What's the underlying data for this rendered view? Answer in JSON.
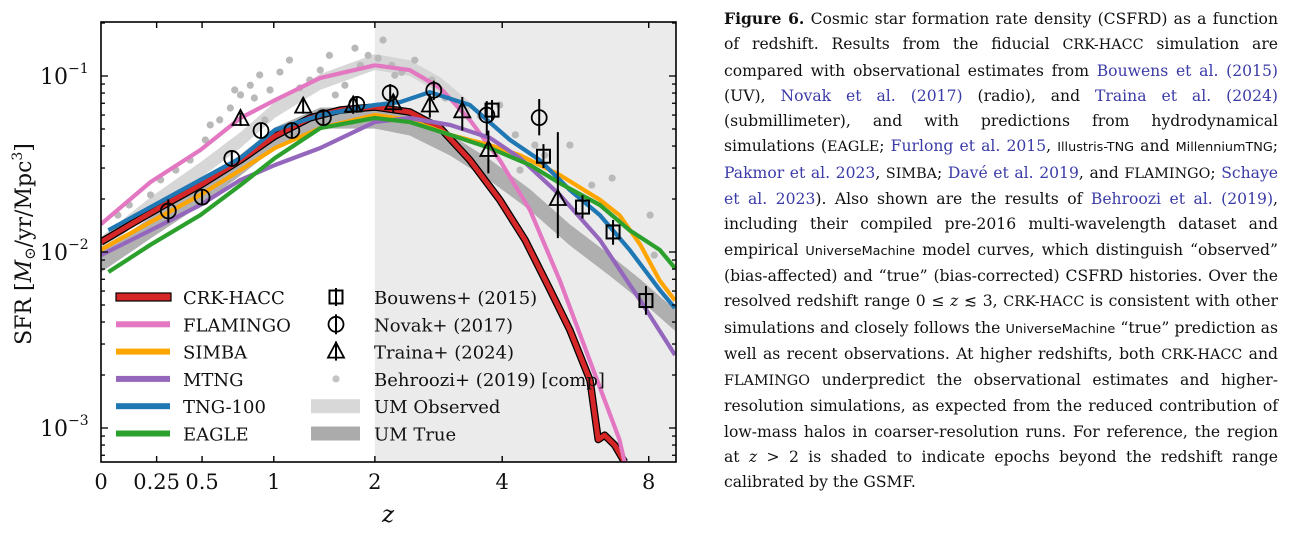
{
  "chart_data": {
    "type": "line",
    "title": "",
    "xlabel": "z",
    "ylabel": "SFR [M⊙/yr/Mpc³]",
    "xscale": "log(1+z)",
    "yscale": "log",
    "xlim": [
      0,
      9.0
    ],
    "ylim": [
      0.00058,
      0.22
    ],
    "xticks": [
      0,
      0.25,
      0.5,
      1,
      2,
      4,
      8
    ],
    "xtick_labels": [
      "0",
      "0.25",
      "0.5",
      "1",
      "2",
      "4",
      "8"
    ],
    "yticks": [
      0.001,
      0.01,
      0.1
    ],
    "ytick_labels": [
      "10",
      "10",
      "10"
    ],
    "ytick_exponents": [
      "−3",
      "−2",
      "−1"
    ],
    "shaded_region": {
      "x_from": 2,
      "x_to": 9.0,
      "color": "#ebebeb",
      "meaning": "z > 2 beyond GSMF-calibrated range"
    },
    "grid": false,
    "legend_placement": "lower-left",
    "series": [
      {
        "name": "CRK-HACC",
        "kind": "line",
        "color": "#d62728",
        "outline": "#000000",
        "x": [
          0,
          0.12,
          0.27,
          0.5,
          0.75,
          1.01,
          1.31,
          1.61,
          2.0,
          2.45,
          2.9,
          3.39,
          3.95,
          4.48,
          5.06,
          5.56,
          6.11,
          6.35,
          6.54,
          6.85,
          7.17
        ],
        "y": [
          0.0114,
          0.0142,
          0.018,
          0.0243,
          0.0333,
          0.0456,
          0.0577,
          0.0641,
          0.0667,
          0.0624,
          0.0506,
          0.0333,
          0.0198,
          0.0117,
          0.0061,
          0.0036,
          0.00187,
          0.00086,
          0.00091,
          0.0008,
          0.00064
        ]
      },
      {
        "name": "FLAMINGO",
        "kind": "line",
        "color": "#e377c2",
        "x": [
          0,
          0.22,
          0.49,
          0.75,
          1.01,
          1.41,
          2.0,
          2.45,
          2.9,
          3.39,
          3.95,
          4.59,
          5.3,
          6.11,
          7.0,
          7.17
        ],
        "y": [
          0.0144,
          0.025,
          0.038,
          0.0577,
          0.073,
          0.0976,
          0.115,
          0.108,
          0.0855,
          0.0563,
          0.0333,
          0.0173,
          0.0069,
          0.0024,
          0.00086,
          0.00064
        ]
      },
      {
        "name": "SIMBA",
        "kind": "line",
        "color": "#ffa500",
        "x": [
          0,
          0.22,
          0.49,
          0.75,
          1.01,
          1.41,
          2.0,
          2.45,
          3.06,
          3.76,
          4.37,
          5.3,
          6.4,
          7.0,
          7.7,
          8.4,
          9.0
        ],
        "y": [
          0.0103,
          0.0148,
          0.0211,
          0.0292,
          0.039,
          0.0506,
          0.06,
          0.0563,
          0.0463,
          0.0405,
          0.0355,
          0.0274,
          0.0198,
          0.0162,
          0.011,
          0.0069,
          0.0053
        ]
      },
      {
        "name": "MTNG",
        "kind": "line",
        "color": "#9467bd",
        "x": [
          0,
          0.22,
          0.49,
          0.75,
          1.01,
          1.41,
          2.0,
          2.45,
          3.06,
          3.76,
          4.37,
          5.3,
          6.4,
          7.7,
          9.0
        ],
        "y": [
          0.0096,
          0.0133,
          0.0185,
          0.0257,
          0.0312,
          0.039,
          0.0548,
          0.0577,
          0.0527,
          0.0445,
          0.0342,
          0.0211,
          0.0117,
          0.0053,
          0.0026
        ]
      },
      {
        "name": "TNG-100",
        "kind": "line",
        "color": "#1f77b4",
        "x": [
          0.03,
          0.22,
          0.49,
          0.75,
          1.01,
          1.41,
          2.0,
          2.32,
          2.74,
          3.39,
          4.16,
          4.81,
          5.56,
          6.4,
          7.33,
          8.4,
          9.0
        ],
        "y": [
          0.0133,
          0.018,
          0.0257,
          0.0342,
          0.0494,
          0.06,
          0.0684,
          0.0711,
          0.081,
          0.0684,
          0.0433,
          0.0333,
          0.0225,
          0.0162,
          0.0103,
          0.0061,
          0.0048
        ]
      },
      {
        "name": "EAGLE",
        "kind": "line",
        "color": "#2ca02c",
        "x": [
          0.03,
          0.22,
          0.49,
          0.75,
          1.01,
          1.41,
          2.0,
          2.45,
          3.06,
          3.76,
          4.59,
          5.3,
          6.4,
          7.33,
          8.4,
          9.0
        ],
        "y": [
          0.0077,
          0.011,
          0.0162,
          0.024,
          0.0342,
          0.0506,
          0.0577,
          0.0548,
          0.0463,
          0.039,
          0.0312,
          0.0246,
          0.0185,
          0.0133,
          0.0103,
          0.0081
        ]
      },
      {
        "name": "UM Observed",
        "kind": "band",
        "color": "#d3d3d3",
        "log_halfwidth": 0.045,
        "x": [
          0,
          0.22,
          0.49,
          0.75,
          1.01,
          1.41,
          2.0,
          2.45,
          2.9,
          3.39
        ],
        "y": [
          0.011,
          0.0185,
          0.0292,
          0.0433,
          0.0642,
          0.0925,
          0.12,
          0.111,
          0.0886,
          0.0642
        ]
      },
      {
        "name": "UM True",
        "kind": "band",
        "color": "#a9a9a9",
        "log_halfwidth": 0.06,
        "x": [
          0,
          0.22,
          0.49,
          0.75,
          1.01,
          1.41,
          2.0,
          2.45,
          3.06,
          3.76,
          4.59,
          5.56,
          6.7,
          7.7,
          9.0
        ],
        "y": [
          0.0088,
          0.0137,
          0.0211,
          0.0312,
          0.0445,
          0.0577,
          0.0577,
          0.0527,
          0.0405,
          0.0292,
          0.0198,
          0.0125,
          0.0084,
          0.0061,
          0.0041
        ]
      }
    ],
    "observations": [
      {
        "name": "Bouwens+ (2015)",
        "marker": "square",
        "points": [
          {
            "x": 3.8,
            "y": 0.064,
            "err": [
              0.056,
              0.073
            ]
          },
          {
            "x": 4.9,
            "y": 0.035,
            "err": [
              0.03,
              0.041
            ]
          },
          {
            "x": 5.9,
            "y": 0.018,
            "err": [
              0.0155,
              0.021
            ]
          },
          {
            "x": 6.8,
            "y": 0.013,
            "err": [
              0.011,
              0.0152
            ]
          },
          {
            "x": 7.9,
            "y": 0.0053,
            "err": [
              0.0044,
              0.0064
            ]
          }
        ]
      },
      {
        "name": "Novak+ (2017)",
        "marker": "circle",
        "points": [
          {
            "x": 0.31,
            "y": 0.0171,
            "err": [
              0.0147,
              0.0199
            ]
          },
          {
            "x": 0.5,
            "y": 0.0205,
            "err": [
              0.0185,
              0.0227
            ]
          },
          {
            "x": 0.69,
            "y": 0.034,
            "err": [
              0.031,
              0.0373
            ]
          },
          {
            "x": 0.9,
            "y": 0.049,
            "err": [
              0.0445,
              0.054
            ]
          },
          {
            "x": 1.15,
            "y": 0.049,
            "err": [
              0.0445,
              0.054
            ]
          },
          {
            "x": 1.44,
            "y": 0.058,
            "err": [
              0.0525,
              0.064
            ]
          },
          {
            "x": 1.79,
            "y": 0.069,
            "err": [
              0.062,
              0.076
            ]
          },
          {
            "x": 2.19,
            "y": 0.08,
            "err": [
              0.071,
              0.09
            ]
          },
          {
            "x": 2.8,
            "y": 0.083,
            "err": [
              0.073,
              0.094
            ]
          },
          {
            "x": 3.7,
            "y": 0.06,
            "err": [
              0.046,
              0.072
            ]
          },
          {
            "x": 4.8,
            "y": 0.058,
            "err": [
              0.046,
              0.074
            ]
          }
        ]
      },
      {
        "name": "Traina+ (2024)",
        "marker": "triangle",
        "points": [
          {
            "x": 0.75,
            "y": 0.057,
            "err": [
              0.052,
              0.062
            ]
          },
          {
            "x": 1.25,
            "y": 0.067,
            "err": [
              0.061,
              0.074
            ]
          },
          {
            "x": 1.75,
            "y": 0.068,
            "err": [
              0.061,
              0.075
            ]
          },
          {
            "x": 2.23,
            "y": 0.07,
            "err": [
              0.062,
              0.078
            ]
          },
          {
            "x": 2.74,
            "y": 0.068,
            "err": [
              0.058,
              0.079
            ]
          },
          {
            "x": 3.26,
            "y": 0.063,
            "err": [
              0.049,
              0.076
            ]
          },
          {
            "x": 3.73,
            "y": 0.038,
            "err": [
              0.028,
              0.049
            ]
          },
          {
            "x": 5.25,
            "y": 0.02,
            "err": [
              0.012,
              0.048
            ]
          }
        ]
      },
      {
        "name": "Behroozi+ (2019) [comp]",
        "marker": "dot",
        "color": "#b9b9b9",
        "points": [
          {
            "x": 0.07,
            "y": 0.0162
          },
          {
            "x": 0.12,
            "y": 0.0185
          },
          {
            "x": 0.22,
            "y": 0.0211
          },
          {
            "x": 0.27,
            "y": 0.0257
          },
          {
            "x": 0.35,
            "y": 0.0292
          },
          {
            "x": 0.43,
            "y": 0.0333
          },
          {
            "x": 0.52,
            "y": 0.0433
          },
          {
            "x": 0.55,
            "y": 0.0527
          },
          {
            "x": 0.61,
            "y": 0.0563
          },
          {
            "x": 0.68,
            "y": 0.0658
          },
          {
            "x": 0.71,
            "y": 0.0833
          },
          {
            "x": 0.75,
            "y": 0.0781
          },
          {
            "x": 0.82,
            "y": 0.0886
          },
          {
            "x": 0.85,
            "y": 0.075
          },
          {
            "x": 0.89,
            "y": 0.1014
          },
          {
            "x": 0.93,
            "y": 0.0563
          },
          {
            "x": 0.97,
            "y": 0.0833
          },
          {
            "x": 1.05,
            "y": 0.1053
          },
          {
            "x": 1.13,
            "y": 0.1231
          },
          {
            "x": 1.22,
            "y": 0.0855
          },
          {
            "x": 1.31,
            "y": 0.0948
          },
          {
            "x": 1.41,
            "y": 0.108
          },
          {
            "x": 1.5,
            "y": 0.131
          },
          {
            "x": 1.56,
            "y": 0.078
          },
          {
            "x": 1.66,
            "y": 0.0886
          },
          {
            "x": 1.77,
            "y": 0.144
          },
          {
            "x": 1.83,
            "y": 0.115
          },
          {
            "x": 1.92,
            "y": 0.131
          },
          {
            "x": 2.04,
            "y": 0.126
          },
          {
            "x": 2.1,
            "y": 0.16
          },
          {
            "x": 2.21,
            "y": 0.115
          },
          {
            "x": 2.25,
            "y": 0.101
          },
          {
            "x": 2.34,
            "y": 0.105
          },
          {
            "x": 2.52,
            "y": 0.123
          },
          {
            "x": 2.77,
            "y": 0.095
          },
          {
            "x": 2.98,
            "y": 0.075
          },
          {
            "x": 3.19,
            "y": 0.0684
          },
          {
            "x": 3.58,
            "y": 0.0591
          },
          {
            "x": 3.95,
            "y": 0.0684
          },
          {
            "x": 4.27,
            "y": 0.0463
          },
          {
            "x": 4.37,
            "y": 0.0292
          },
          {
            "x": 4.7,
            "y": 0.0405
          },
          {
            "x": 4.93,
            "y": 0.0355
          },
          {
            "x": 5.56,
            "y": 0.0405
          },
          {
            "x": 6.16,
            "y": 0.024
          },
          {
            "x": 6.77,
            "y": 0.0263
          },
          {
            "x": 8.05,
            "y": 0.0162
          },
          {
            "x": 8.2,
            "y": 0.0096
          },
          {
            "x": 7.98,
            "y": 0.005
          }
        ]
      }
    ],
    "legend_left": [
      "CRK-HACC",
      "FLAMINGO",
      "SIMBA",
      "MTNG",
      "TNG-100",
      "EAGLE"
    ],
    "legend_right": [
      "Bouwens+ (2015)",
      "Novak+ (2017)",
      "Traina+ (2024)",
      "Behroozi+ (2019) [comp]",
      "UM Observed",
      "UM True"
    ]
  },
  "caption": {
    "label": "Figure 6.",
    "segments": [
      {
        "t": " Cosmic star formation rate density (CSFRD) as a function of redshift. Results from the fiducial "
      },
      {
        "t": "CRK-HACC",
        "style": "sc"
      },
      {
        "t": " simulation are compared with observational estimates from "
      },
      {
        "t": "Bouwens et al. (2015)",
        "style": "cite"
      },
      {
        "t": " (UV), "
      },
      {
        "t": "Novak et al. (2017)",
        "style": "cite"
      },
      {
        "t": " (radio), and "
      },
      {
        "t": "Traina et al. (2024)",
        "style": "cite"
      },
      {
        "t": " (submillimeter), and with predictions from hydrodynamical simulations ("
      },
      {
        "t": "EAGLE",
        "style": "sc"
      },
      {
        "t": "; "
      },
      {
        "t": "Furlong et al. 2015",
        "style": "cite"
      },
      {
        "t": ", "
      },
      {
        "t": "Illustris-TNG",
        "style": "sf"
      },
      {
        "t": " and "
      },
      {
        "t": "MillenniumTNG",
        "style": "sf"
      },
      {
        "t": "; "
      },
      {
        "t": "Pakmor et al. 2023",
        "style": "cite"
      },
      {
        "t": ", "
      },
      {
        "t": "SIMBA",
        "style": "sc"
      },
      {
        "t": "; "
      },
      {
        "t": "Davé et al. 2019",
        "style": "cite"
      },
      {
        "t": ", and "
      },
      {
        "t": "FLAMINGO",
        "style": "sc"
      },
      {
        "t": "; "
      },
      {
        "t": "Schaye et al. 2023",
        "style": "cite"
      },
      {
        "t": "). Also shown are the results of "
      },
      {
        "t": "Behroozi et al. (2019)",
        "style": "cite"
      },
      {
        "t": ", includ­ing their compiled pre-2016 multi-wavelength dataset and empirical "
      },
      {
        "t": "UniverseMachine",
        "style": "sf"
      },
      {
        "t": " model curves, which distinguish “observed” (bias-affected) and “true” (bias-corrected) CS­FRD histories. Over the resolved redshift range 0 ≤ "
      },
      {
        "t": "z",
        "style": "math"
      },
      {
        "t": " ≲ 3, "
      },
      {
        "t": "CRK-HACC",
        "style": "sc"
      },
      {
        "t": " is consistent with other simulations and closely follows the "
      },
      {
        "t": "UniverseMachine",
        "style": "sf"
      },
      {
        "t": " “true” prediction as well as re­cent observations. At higher redshifts, both "
      },
      {
        "t": "CRK-HACC",
        "style": "sc"
      },
      {
        "t": " and "
      },
      {
        "t": "FLAMINGO",
        "style": "sc"
      },
      {
        "t": " underpredict the observational estimates and higher-resolution simulations, as expected from the reduced contribution of low-mass halos in coarser-resolution runs. For reference, the region at "
      },
      {
        "t": "z",
        "style": "math"
      },
      {
        "t": " > 2 is shaded to indicate epochs beyond the redshift range calibrated by the GSMF."
      }
    ]
  }
}
